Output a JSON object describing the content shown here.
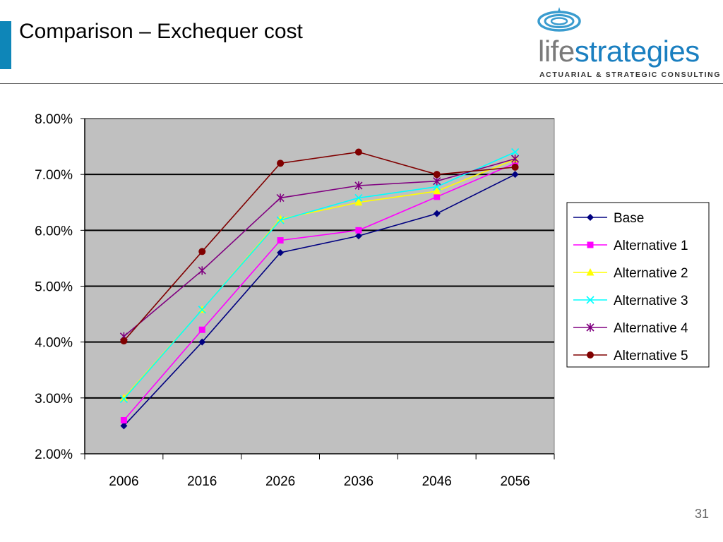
{
  "slide": {
    "title": "Comparison – Exchequer cost",
    "page_number": "31",
    "accent_color": "#0E86B8"
  },
  "logo": {
    "icon": "water-ripple-icon",
    "text_light": "life",
    "text_bold": "strategies",
    "tagline": "ACTUARIAL & STRATEGIC CONSULTING",
    "colors": {
      "light": "#7A7A7A",
      "bold": "#1A7FC0",
      "icon": "#3A9CCF"
    }
  },
  "chart_data": {
    "type": "line",
    "title": "",
    "xlabel": "",
    "ylabel": "",
    "categories": [
      "2006",
      "2016",
      "2026",
      "2036",
      "2046",
      "2056"
    ],
    "y_tick_labels": [
      "2.00%",
      "3.00%",
      "4.00%",
      "5.00%",
      "6.00%",
      "7.00%",
      "8.00%"
    ],
    "ylim": [
      2,
      8
    ],
    "y_unit": "%",
    "grid": true,
    "plot_background": "#C0C0C0",
    "legend_position": "right",
    "series": [
      {
        "name": "Base",
        "values": [
          2.5,
          4.0,
          5.6,
          5.9,
          6.3,
          7.0
        ],
        "color": "#000080",
        "marker": "diamond"
      },
      {
        "name": "Alternative 1",
        "values": [
          2.6,
          4.22,
          5.82,
          6.0,
          6.6,
          7.2
        ],
        "color": "#FF00FF",
        "marker": "square"
      },
      {
        "name": "Alternative 2",
        "values": [
          3.0,
          4.58,
          6.2,
          6.5,
          6.7,
          7.27
        ],
        "color": "#FFFF00",
        "marker": "triangle"
      },
      {
        "name": "Alternative 3",
        "values": [
          2.98,
          4.58,
          6.18,
          6.58,
          6.78,
          7.4
        ],
        "color": "#00FFFF",
        "marker": "x"
      },
      {
        "name": "Alternative 4",
        "values": [
          4.1,
          5.28,
          6.58,
          6.8,
          6.88,
          7.28
        ],
        "color": "#800080",
        "marker": "star"
      },
      {
        "name": "Alternative 5",
        "values": [
          4.02,
          5.62,
          7.2,
          7.4,
          7.0,
          7.13
        ],
        "color": "#800000",
        "marker": "circle"
      }
    ]
  }
}
